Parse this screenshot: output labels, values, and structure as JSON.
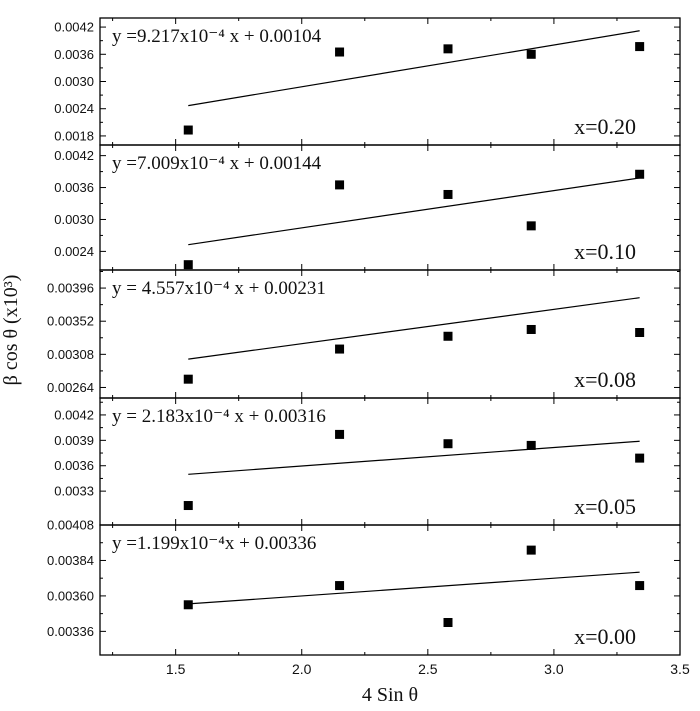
{
  "chart_data": {
    "type": "scatter",
    "xlabel": "4 Sin θ",
    "ylabel": "β cos θ (x10³)",
    "xlim": [
      1.2,
      3.5
    ],
    "xticks": [
      1.5,
      2.0,
      2.5,
      3.0,
      3.5
    ],
    "xtick_labels": [
      "1.5",
      "2.0",
      "2.5",
      "3.0",
      "3.5"
    ],
    "x": [
      1.55,
      2.15,
      2.58,
      2.91,
      3.34
    ],
    "fit_x_range": [
      1.55,
      3.34
    ],
    "panels": [
      {
        "label": "x=0.20",
        "equation": "y =9.217x10⁻⁴ x + 0.00104",
        "slope": 0.0009217,
        "intercept": 0.00104,
        "ylim": [
          0.0016,
          0.0044
        ],
        "yticks": [
          0.0018,
          0.0024,
          0.003,
          0.0036,
          0.0042
        ],
        "ytick_labels": [
          "0.0018",
          "0.0024",
          "0.0030",
          "0.0036",
          "0.0042"
        ],
        "values": [
          0.00193,
          0.00365,
          0.00372,
          0.0036,
          0.00377
        ]
      },
      {
        "label": "x=0.10",
        "equation": "y =7.009x10⁻⁴ x + 0.00144",
        "slope": 0.0007009,
        "intercept": 0.00144,
        "ylim": [
          0.00205,
          0.0044
        ],
        "yticks": [
          0.0024,
          0.003,
          0.0036,
          0.0042
        ],
        "ytick_labels": [
          "0.0024",
          "0.0030",
          "0.0036",
          "0.0042"
        ],
        "values": [
          0.00215,
          0.00365,
          0.00347,
          0.00288,
          0.00385
        ]
      },
      {
        "label": "x=0.08",
        "equation": "y = 4.557x10⁻⁴ x + 0.00231",
        "slope": 0.0004557,
        "intercept": 0.00231,
        "ylim": [
          0.0025,
          0.0042
        ],
        "yticks": [
          0.00264,
          0.00308,
          0.00352,
          0.00396
        ],
        "ytick_labels": [
          "0.00264",
          "0.00308",
          "0.00352",
          "0.00396"
        ],
        "values": [
          0.00275,
          0.00315,
          0.00332,
          0.00341,
          0.00337
        ]
      },
      {
        "label": "x=0.05",
        "equation": "y = 2.183x10⁻⁴ x + 0.00316",
        "slope": 0.0002183,
        "intercept": 0.00316,
        "ylim": [
          0.0029,
          0.0044
        ],
        "yticks": [
          0.0033,
          0.0036,
          0.0039,
          0.0042
        ],
        "ytick_labels": [
          "0.0033",
          "0.0036",
          "0.0039",
          "0.0042"
        ],
        "values": [
          0.00313,
          0.00397,
          0.00386,
          0.00384,
          0.00369
        ]
      },
      {
        "label": "x=0.00",
        "equation": "y =1.199x10⁻⁴x + 0.00336",
        "slope": 0.0001199,
        "intercept": 0.00336,
        "ylim": [
          0.0032,
          0.00408
        ],
        "yticks": [
          0.00336,
          0.0036,
          0.00384,
          0.00408
        ],
        "ytick_labels": [
          "0.00336",
          "0.00360",
          "0.00384",
          "0.00408"
        ],
        "values": [
          0.00354,
          0.00367,
          0.00342,
          0.00391,
          0.00367
        ]
      }
    ]
  }
}
